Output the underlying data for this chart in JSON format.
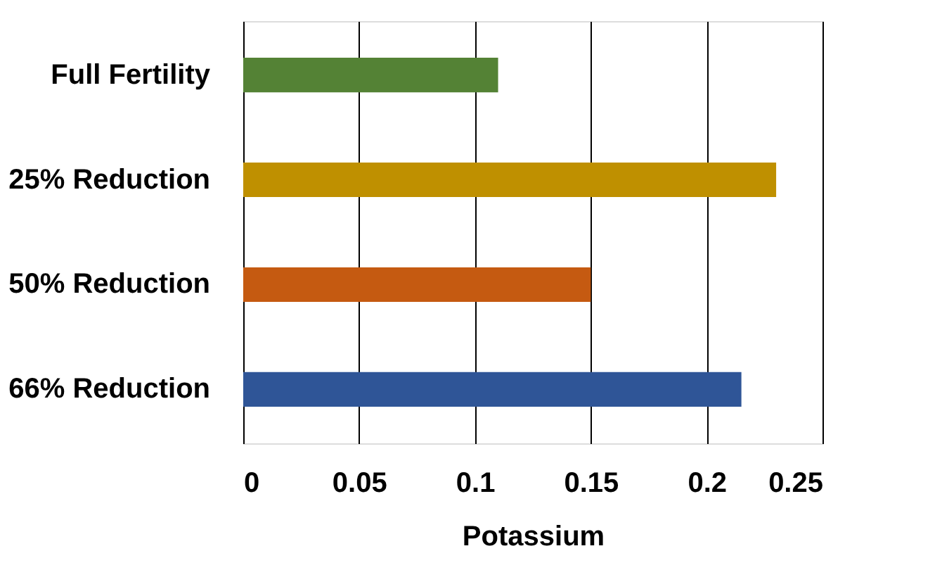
{
  "chart_data": {
    "type": "bar",
    "orientation": "horizontal",
    "xlabel": "Potassium",
    "categories": [
      "Full Fertility",
      "25% Reduction",
      "50% Reduction",
      "66% Reduction"
    ],
    "values": [
      0.11,
      0.23,
      0.15,
      0.215
    ],
    "colors": [
      "#548235",
      "#bf9000",
      "#c55a11",
      "#2f5597"
    ],
    "xlim": [
      0,
      0.25
    ],
    "xticks": [
      0,
      0.05,
      0.1,
      0.15,
      0.2,
      0.25
    ],
    "grid": "x",
    "legend": false
  }
}
